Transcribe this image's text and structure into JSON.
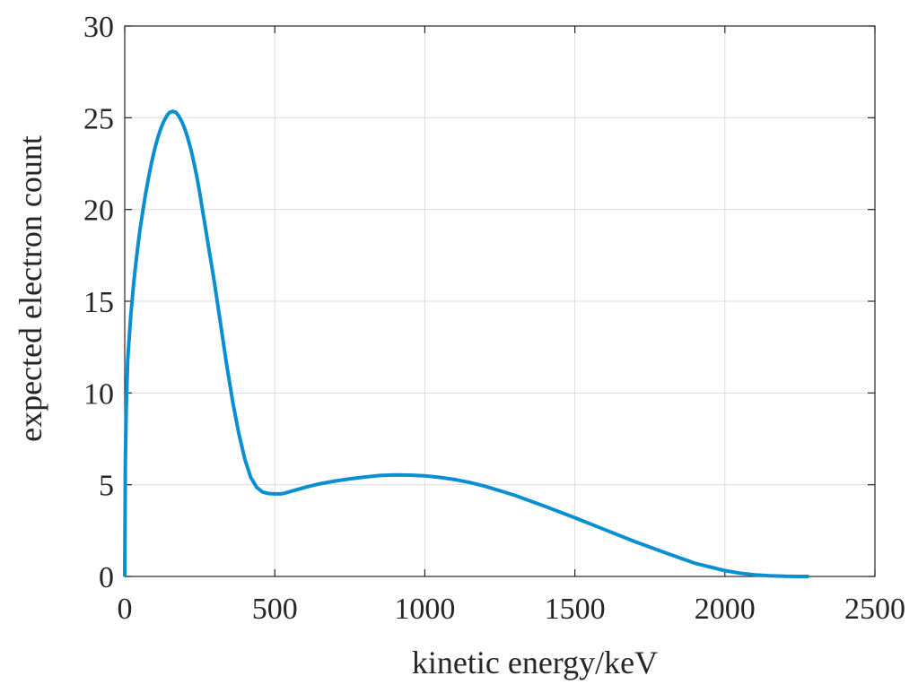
{
  "chart_data": {
    "type": "line",
    "title": "",
    "xlabel": "kinetic energy/keV",
    "ylabel": "expected electron count",
    "xlim": [
      0,
      2500
    ],
    "ylim": [
      0,
      30
    ],
    "xticks": [
      0,
      500,
      1000,
      1500,
      2000,
      2500
    ],
    "yticks": [
      0,
      5,
      10,
      15,
      20,
      25,
      30
    ],
    "xtick_labels": [
      "0",
      "500",
      "1000",
      "1500",
      "2000",
      "2500"
    ],
    "ytick_labels": [
      "0",
      "5",
      "10",
      "15",
      "20",
      "25",
      "30"
    ],
    "grid": true,
    "box": true,
    "line_color": "#0a8fd2",
    "series": [
      {
        "x": [
          0,
          2,
          5,
          10,
          20,
          30,
          40,
          50,
          60,
          70,
          80,
          90,
          100,
          110,
          120,
          130,
          140,
          150,
          160,
          170,
          180,
          190,
          200,
          210,
          220,
          230,
          240,
          250,
          260,
          270,
          280,
          290,
          300,
          320,
          340,
          360,
          380,
          400,
          420,
          440,
          460,
          480,
          500,
          520,
          535,
          550,
          600,
          650,
          700,
          750,
          800,
          850,
          900,
          950,
          1000,
          1050,
          1100,
          1150,
          1200,
          1300,
          1400,
          1500,
          1600,
          1700,
          1800,
          1900,
          2000,
          2050,
          2100,
          2150,
          2200,
          2250,
          2280
        ],
        "y": [
          0,
          6.2,
          9.3,
          11.8,
          14.2,
          16.0,
          17.5,
          18.8,
          19.9,
          20.9,
          21.8,
          22.6,
          23.3,
          23.9,
          24.4,
          24.8,
          25.1,
          25.3,
          25.35,
          25.3,
          25.1,
          24.8,
          24.4,
          23.9,
          23.3,
          22.6,
          21.8,
          20.9,
          19.9,
          18.9,
          17.9,
          16.9,
          15.9,
          13.7,
          11.5,
          9.5,
          7.8,
          6.4,
          5.4,
          4.85,
          4.6,
          4.52,
          4.5,
          4.5,
          4.55,
          4.62,
          4.85,
          5.05,
          5.2,
          5.32,
          5.42,
          5.5,
          5.53,
          5.52,
          5.48,
          5.4,
          5.28,
          5.12,
          4.92,
          4.42,
          3.82,
          3.2,
          2.55,
          1.9,
          1.3,
          0.72,
          0.32,
          0.18,
          0.09,
          0.04,
          0.01,
          0.0,
          0.0
        ]
      }
    ]
  }
}
